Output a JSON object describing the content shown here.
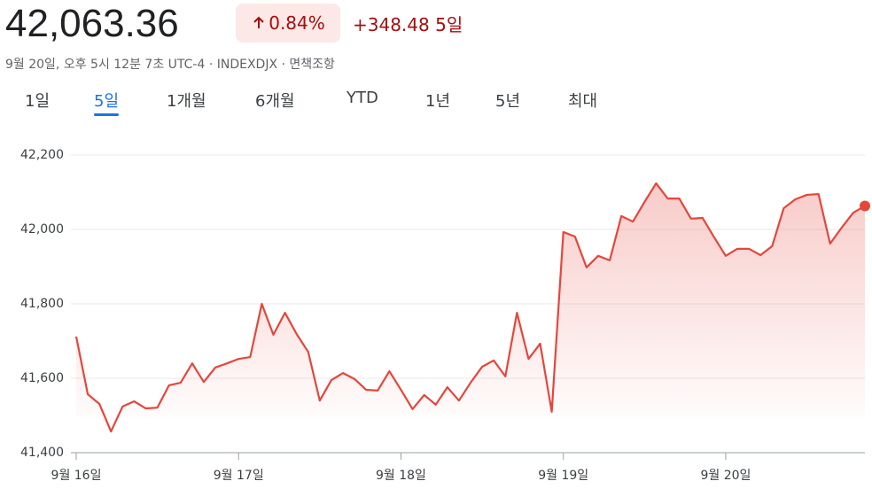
{
  "header": {
    "price": "42,063.36",
    "change_percent": "0.84%",
    "change": "+348.48",
    "period": "5일",
    "subtitle": "9월 20일, 오후 5시 12분 7초 UTC-4 · INDEXDJX · 면책조항"
  },
  "tabs": [
    "1일",
    "5일",
    "1개월",
    "6개월",
    "YTD",
    "1년",
    "5년",
    "최대"
  ],
  "active_tab": 1,
  "chart_data": {
    "type": "line",
    "categories": [
      "9월 16일",
      null,
      null,
      null,
      null,
      null,
      null,
      null,
      null,
      null,
      null,
      null,
      null,
      null,
      "9월 17일",
      null,
      null,
      null,
      null,
      null,
      null,
      null,
      null,
      null,
      null,
      null,
      null,
      null,
      "9월 18일",
      null,
      null,
      null,
      null,
      null,
      null,
      null,
      null,
      null,
      null,
      null,
      null,
      null,
      "9월 19일",
      null,
      null,
      null,
      null,
      null,
      null,
      null,
      null,
      null,
      null,
      null,
      null,
      null,
      "9월 20일",
      null,
      null,
      null,
      null,
      null,
      null,
      null,
      null,
      null,
      null,
      null,
      null
    ],
    "series": [
      {
        "color": "#e5463b",
        "values": [
          41712,
          41557,
          41531,
          41457,
          41524,
          41538,
          41519,
          41521,
          41581,
          41588,
          41640,
          41590,
          41629,
          41640,
          41652,
          41657,
          41800,
          41717,
          41776,
          41719,
          41671,
          41540,
          41595,
          41614,
          41598,
          41569,
          41567,
          41619,
          41569,
          41517,
          41555,
          41529,
          41576,
          41540,
          41588,
          41631,
          41648,
          41605,
          41776,
          41652,
          41693,
          41510,
          41993,
          41981,
          41898,
          41929,
          41917,
          42036,
          42021,
          42074,
          42124,
          42083,
          42083,
          42029,
          42031,
          41979,
          41929,
          41948,
          41948,
          41931,
          41955,
          42057,
          42081,
          42093,
          42095,
          41962,
          42005,
          42045,
          42063
        ]
      }
    ],
    "ylim": [
      41400,
      42200
    ],
    "yticks": [
      {
        "value": 41400,
        "label": "41,400"
      },
      {
        "value": 41600,
        "label": "41,600"
      },
      {
        "value": 41800,
        "label": "41,800"
      },
      {
        "value": 42000,
        "label": "42,000"
      },
      {
        "value": 42200,
        "label": "42,200"
      }
    ],
    "grid": true
  }
}
